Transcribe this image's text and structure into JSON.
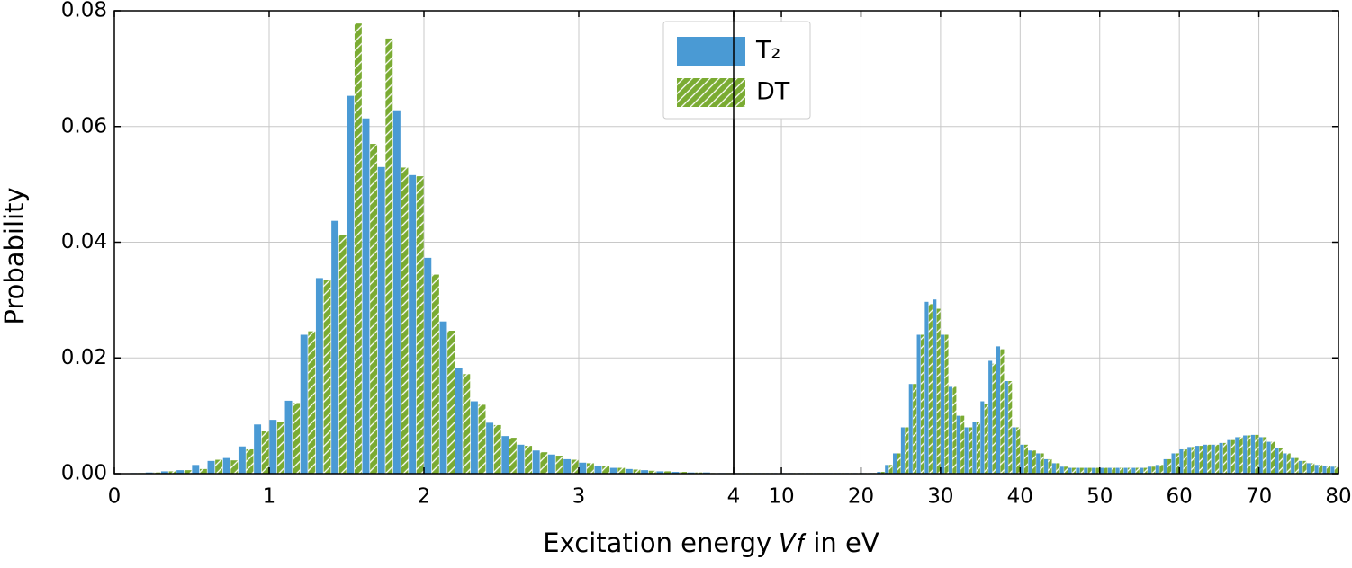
{
  "chart_data": [
    {
      "type": "histogram",
      "xlabel": "Excitation energy 𝑉𝑓 in eV",
      "ylabel": "Probability",
      "legend": "upper center",
      "grid": true,
      "bins": [
        0,
        0.1,
        0.2,
        0.3,
        0.4,
        0.5,
        0.6,
        0.7,
        0.8,
        0.9,
        1.0,
        1.1,
        1.2,
        1.3,
        1.4,
        1.5,
        1.6,
        1.7,
        1.8,
        1.9,
        2.0,
        2.1,
        2.2,
        2.3,
        2.4,
        2.5,
        2.6,
        2.7,
        2.8,
        2.9,
        3.0,
        3.1,
        3.2,
        3.3,
        3.4,
        3.5,
        3.6,
        3.7,
        3.8,
        3.9,
        4.0
      ],
      "xlim": [
        0,
        4
      ],
      "xticks": [
        0,
        1,
        2,
        3,
        4
      ],
      "ylim": [
        0,
        0.08
      ],
      "yticks": [
        {
          "value": 0,
          "label": "0.00"
        },
        {
          "value": 0.02,
          "label": "0.02"
        },
        {
          "value": 0.04,
          "label": "0.04"
        },
        {
          "value": 0.06,
          "label": "0.06"
        },
        {
          "value": 0.08,
          "label": "0.08"
        }
      ],
      "series": [
        {
          "name": "T₂",
          "color": "#4a9ad4",
          "hatch": false,
          "values": [
            0,
            0.0001,
            0.0002,
            0.0004,
            0.0006,
            0.0015,
            0.0022,
            0.0027,
            0.0047,
            0.0085,
            0.0093,
            0.0126,
            0.024,
            0.0338,
            0.0437,
            0.0653,
            0.0614,
            0.053,
            0.0628,
            0.0516,
            0.0373,
            0.0263,
            0.0182,
            0.0125,
            0.0088,
            0.0065,
            0.005,
            0.004,
            0.0033,
            0.0025,
            0.0019,
            0.0014,
            0.001,
            0.0008,
            0.0006,
            0.0004,
            0.0003,
            0.0002,
            0.0002,
            0.0001
          ]
        },
        {
          "name": "DT",
          "color": "#7aab32",
          "hatch": true,
          "values": [
            0,
            0.0001,
            0.0002,
            0.0004,
            0.0006,
            0.0008,
            0.0024,
            0.0023,
            0.0042,
            0.0073,
            0.0089,
            0.0122,
            0.0246,
            0.0335,
            0.0413,
            0.0778,
            0.057,
            0.0752,
            0.0529,
            0.0514,
            0.0344,
            0.0247,
            0.0172,
            0.0119,
            0.0084,
            0.0062,
            0.0048,
            0.0037,
            0.0031,
            0.0024,
            0.0018,
            0.0013,
            0.001,
            0.0007,
            0.0005,
            0.0004,
            0.0003,
            0.0002,
            0.0001,
            0.0001
          ]
        }
      ]
    },
    {
      "type": "histogram",
      "grid": true,
      "bins": [
        4,
        5,
        6,
        7,
        8,
        9,
        10,
        11,
        12,
        13,
        14,
        15,
        16,
        17,
        18,
        19,
        20,
        21,
        22,
        23,
        24,
        25,
        26,
        27,
        28,
        29,
        30,
        31,
        32,
        33,
        34,
        35,
        36,
        37,
        38,
        39,
        40,
        41,
        42,
        43,
        44,
        45,
        46,
        47,
        48,
        49,
        50,
        51,
        52,
        53,
        54,
        55,
        56,
        57,
        58,
        59,
        60,
        61,
        62,
        63,
        64,
        65,
        66,
        67,
        68,
        69,
        70,
        71,
        72,
        73,
        74,
        75,
        76,
        77,
        78,
        79,
        80
      ],
      "xlim": [
        4,
        80
      ],
      "xticks": [
        10,
        20,
        30,
        40,
        50,
        60,
        70,
        80
      ],
      "ylim": [
        0,
        0.08
      ],
      "series": [
        {
          "color": "#4a9ad4",
          "hatch": false,
          "values": [
            0.0001,
            0.0001,
            0.0001,
            0.0001,
            0.0001,
            0.0001,
            0.0001,
            0.0001,
            0.0001,
            0.0001,
            0.0001,
            0.0001,
            0.0001,
            0.0001,
            0.0001,
            0.0001,
            0.0001,
            0.0001,
            0.0003,
            0.0015,
            0.0035,
            0.008,
            0.0155,
            0.024,
            0.0297,
            0.0301,
            0.024,
            0.015,
            0.01,
            0.008,
            0.009,
            0.0125,
            0.0195,
            0.022,
            0.016,
            0.008,
            0.005,
            0.004,
            0.0035,
            0.0025,
            0.0018,
            0.0012,
            0.001,
            0.001,
            0.001,
            0.001,
            0.001,
            0.001,
            0.001,
            0.001,
            0.001,
            0.001,
            0.0012,
            0.0015,
            0.0025,
            0.0035,
            0.0042,
            0.0046,
            0.0048,
            0.005,
            0.005,
            0.0053,
            0.0058,
            0.0063,
            0.0066,
            0.0067,
            0.0063,
            0.0055,
            0.0045,
            0.0035,
            0.0027,
            0.0022,
            0.0018,
            0.0015,
            0.0013,
            0.0012
          ]
        },
        {
          "color": "#7aab32",
          "hatch": true,
          "values": [
            0.0001,
            0.0001,
            0.0001,
            0.0001,
            0.0001,
            0.0001,
            0.0001,
            0.0001,
            0.0001,
            0.0001,
            0.0001,
            0.0001,
            0.0001,
            0.0001,
            0.0001,
            0.0001,
            0.0001,
            0.0001,
            0.0003,
            0.0015,
            0.0035,
            0.008,
            0.0155,
            0.024,
            0.0293,
            0.0285,
            0.024,
            0.015,
            0.01,
            0.008,
            0.009,
            0.012,
            0.019,
            0.0215,
            0.016,
            0.008,
            0.005,
            0.004,
            0.0035,
            0.0025,
            0.0018,
            0.0012,
            0.001,
            0.001,
            0.001,
            0.001,
            0.001,
            0.001,
            0.001,
            0.001,
            0.001,
            0.001,
            0.0012,
            0.0015,
            0.0025,
            0.0035,
            0.0042,
            0.0046,
            0.0048,
            0.005,
            0.005,
            0.0053,
            0.0058,
            0.0063,
            0.0066,
            0.0067,
            0.0063,
            0.0055,
            0.0045,
            0.0035,
            0.0027,
            0.0022,
            0.0018,
            0.0015,
            0.0013,
            0.0012
          ]
        }
      ]
    }
  ]
}
